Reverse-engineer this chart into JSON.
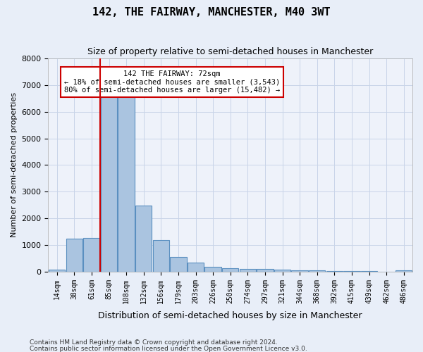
{
  "title": "142, THE FAIRWAY, MANCHESTER, M40 3WT",
  "subtitle": "Size of property relative to semi-detached houses in Manchester",
  "xlabel": "Distribution of semi-detached houses by size in Manchester",
  "ylabel": "Number of semi-detached properties",
  "footnote1": "Contains HM Land Registry data © Crown copyright and database right 2024.",
  "footnote2": "Contains public sector information licensed under the Open Government Licence v3.0.",
  "bar_labels": [
    "14sqm",
    "38sqm",
    "61sqm",
    "85sqm",
    "108sqm",
    "132sqm",
    "156sqm",
    "179sqm",
    "203sqm",
    "226sqm",
    "250sqm",
    "274sqm",
    "297sqm",
    "321sqm",
    "344sqm",
    "368sqm",
    "392sqm",
    "415sqm",
    "439sqm",
    "462sqm",
    "486sqm"
  ],
  "bar_values": [
    90,
    1230,
    1270,
    6590,
    6640,
    2490,
    1180,
    565,
    330,
    175,
    130,
    115,
    100,
    75,
    50,
    40,
    30,
    20,
    15,
    10,
    60
  ],
  "bar_color": "#aac4e0",
  "bar_edge_color": "#5a8fc0",
  "ylim": [
    0,
    8000
  ],
  "yticks": [
    0,
    1000,
    2000,
    3000,
    4000,
    5000,
    6000,
    7000,
    8000
  ],
  "vline_index": 3,
  "annotation_text1": "142 THE FAIRWAY: 72sqm",
  "annotation_text2": "← 18% of semi-detached houses are smaller (3,543)",
  "annotation_text3": "80% of semi-detached houses are larger (15,482) →",
  "annotation_box_color": "#ffffff",
  "annotation_box_edge": "#cc0000",
  "vline_color": "#cc0000",
  "grid_color": "#c8d4e8",
  "bg_color": "#e8eef8",
  "plot_bg_color": "#eef2fa"
}
